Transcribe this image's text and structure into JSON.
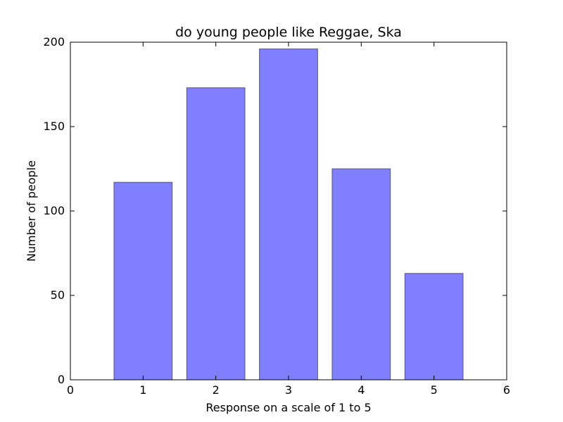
{
  "chart_data": {
    "type": "bar",
    "title": "do young people like Reggae, Ska",
    "xlabel": "Response on a scale of 1 to 5",
    "ylabel": "Number of people",
    "categories": [
      "1",
      "2",
      "3",
      "4",
      "5"
    ],
    "x": [
      1,
      2,
      3,
      4,
      5
    ],
    "values": [
      117,
      173,
      196,
      125,
      63
    ],
    "xlim": [
      0,
      6
    ],
    "ylim": [
      0,
      200
    ],
    "xticks": [
      "0",
      "1",
      "2",
      "3",
      "4",
      "5",
      "6"
    ],
    "yticks": [
      "0",
      "50",
      "100",
      "150",
      "200"
    ],
    "grid": false,
    "legend": "none",
    "colors": {
      "bar_fill": "#8080ff",
      "bar_stroke": "#555577",
      "axes": "#000000"
    }
  }
}
